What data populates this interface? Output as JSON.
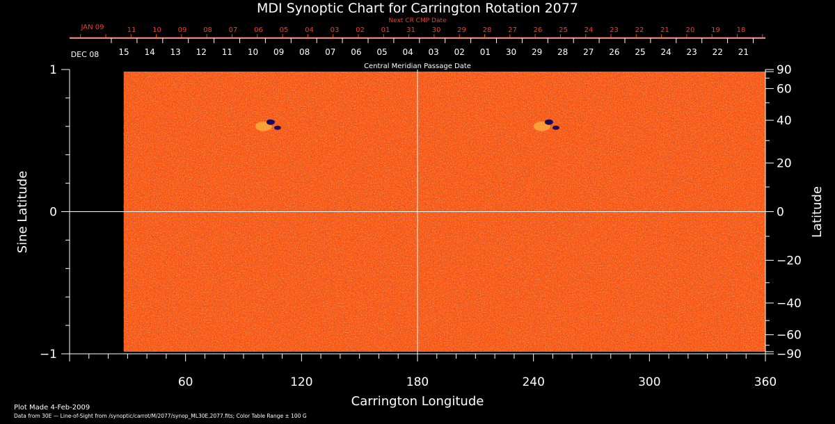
{
  "chart_data": {
    "type": "heatmap",
    "title": "MDI Synoptic Chart for Carrington Rotation 2077",
    "xlabel": "Carrington Longitude",
    "ylabel_left": "Sine Latitude",
    "ylabel_right": "Latitude",
    "xlim": [
      0,
      360
    ],
    "ylim": [
      -1,
      1
    ],
    "x_ticks": [
      "60",
      "120",
      "180",
      "240",
      "300",
      "360"
    ],
    "y_ticks_left": [
      "1",
      "0",
      "−1"
    ],
    "y_ticks_right": [
      "90",
      "60",
      "40",
      "20",
      "0",
      "−20",
      "−40",
      "−60",
      "−90"
    ],
    "y_ticks_right_values": [
      90,
      60,
      40,
      20,
      0,
      -20,
      -40,
      -60,
      -90
    ],
    "colors": {
      "background": "#000000",
      "map_base": "#ff5a14",
      "map_dark": "#1a0a5a",
      "map_bright": "#ffd24a",
      "top_axis_red": "#ff3a1a",
      "axis_white": "#ffffff"
    },
    "top_axis": {
      "next_cr_label": "Next CR CMP Date",
      "next_cr_month": "JAN 09",
      "next_cr_dates": [
        "11",
        "10",
        "09",
        "08",
        "07",
        "06",
        "05",
        "04",
        "03",
        "02",
        "01",
        "31",
        "30",
        "29",
        "28",
        "27",
        "26",
        "25",
        "24",
        "23",
        "22",
        "21",
        "20",
        "19",
        "18"
      ],
      "cmp_label": "Central Meridian Passage Date",
      "cmp_month": "DEC 08",
      "cmp_dates": [
        "15",
        "14",
        "13",
        "12",
        "11",
        "10",
        "09",
        "08",
        "07",
        "06",
        "05",
        "04",
        "03",
        "02",
        "01",
        "30",
        "29",
        "28",
        "27",
        "26",
        "25",
        "24",
        "23",
        "22",
        "21"
      ]
    },
    "active_regions": [
      {
        "longitude": 104,
        "sine_latitude": 0.62,
        "polarity": "dark"
      },
      {
        "longitude": 248,
        "sine_latitude": 0.62,
        "polarity": "dark"
      }
    ],
    "data_start_longitude": 28
  },
  "footer": {
    "plot_made": "Plot Made  4-Feb-2009",
    "source": "Data from 30E — Line-of-Sight from /synoptic/carrot/M/2077/synop_ML30E.2077.fits; Color Table Range ± 100 G"
  }
}
